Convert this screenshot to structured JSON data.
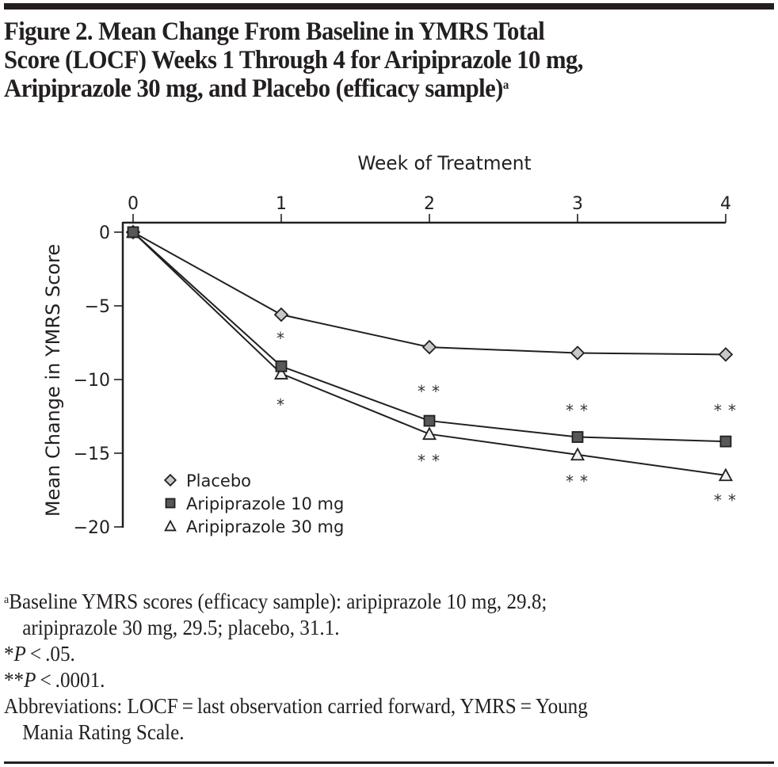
{
  "figure": {
    "title": "Figure 2. Mean Change From Baseline in YMRS Total Score (LOCF) Weeks 1 Through 4 for Aripiprazole 10 mg, Aripiprazole 30 mg, and Placebo (efficacy sample)",
    "title_lines": [
      "Figure 2. Mean Change From Baseline in YMRS Total",
      "Score (LOCF) Weeks 1 Through 4 for Aripiprazole 10 mg,",
      "Aripiprazole 30 mg, and Placebo (efficacy sample)"
    ],
    "title_superscript": "a"
  },
  "chart_data": {
    "type": "line",
    "title": "Mean Change From Baseline in YMRS Total Score (LOCF)",
    "xlabel": "Week of Treatment",
    "ylabel": "Mean Change in YMRS Score",
    "x": [
      0,
      1,
      2,
      3,
      4
    ],
    "xticks": [
      "0",
      "1",
      "2",
      "3",
      "4"
    ],
    "xlim": [
      0,
      4
    ],
    "ylim": [
      -20,
      0
    ],
    "yticks": [
      0,
      -5,
      -10,
      -15,
      -20
    ],
    "ytick_labels": [
      "0",
      "−5",
      "−10",
      "−15",
      "−20"
    ],
    "x_axis_position": "top",
    "grid": false,
    "legend_position": "bottom-left",
    "series": [
      {
        "name": "Placebo",
        "marker": "diamond",
        "color": "#c8c8c8",
        "values": [
          0,
          -5.6,
          -7.8,
          -8.2,
          -8.3
        ]
      },
      {
        "name": "Aripiprazole 10 mg",
        "marker": "square",
        "color": "#58585a",
        "values": [
          0,
          -9.1,
          -12.8,
          -13.9,
          -14.2
        ]
      },
      {
        "name": "Aripiprazole 30 mg",
        "marker": "triangle",
        "color": "#f0f0f0",
        "values": [
          0,
          -9.6,
          -13.7,
          -15.1,
          -16.5
        ]
      }
    ],
    "annotations": [
      {
        "text": "*",
        "x": 1,
        "y": -7.1,
        "refers_to": "Aripiprazole 10 mg"
      },
      {
        "text": "*",
        "x": 1,
        "y": -11.6,
        "refers_to": "Aripiprazole 30 mg"
      },
      {
        "text": "**",
        "x": 2,
        "y": -10.7,
        "refers_to": "Aripiprazole 10 mg"
      },
      {
        "text": "**",
        "x": 2,
        "y": -15.4,
        "refers_to": "Aripiprazole 30 mg"
      },
      {
        "text": "**",
        "x": 3,
        "y": -12.0,
        "refers_to": "Aripiprazole 10 mg"
      },
      {
        "text": "**",
        "x": 3,
        "y": -16.8,
        "refers_to": "Aripiprazole 30 mg"
      },
      {
        "text": "**",
        "x": 4,
        "y": -12.0,
        "refers_to": "Aripiprazole 10 mg"
      },
      {
        "text": "**",
        "x": 4,
        "y": -18.1,
        "refers_to": "Aripiprazole 30 mg"
      }
    ]
  },
  "footnotes": {
    "a_marker": "a",
    "a_line1": "Baseline YMRS scores (efficacy sample): aripiprazole 10 mg, 29.8;",
    "a_line2": "aripiprazole 30 mg, 29.5; placebo, 31.1.",
    "p1_stars": "*",
    "p1_P": "P",
    "p1_rest": " < .05.",
    "p2_stars": "**",
    "p2_P": "P",
    "p2_rest": " < .0001.",
    "abbr_line1": "Abbreviations: LOCF = last observation carried forward, YMRS = Young",
    "abbr_line2": "Mania Rating Scale."
  }
}
